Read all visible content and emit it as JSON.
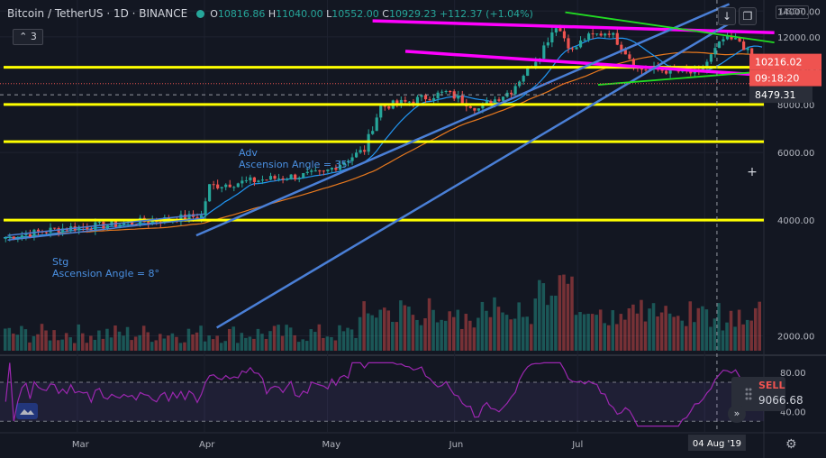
{
  "header": {
    "symbol": "Bitcoin / TetherUS · 1D · BINANCE",
    "open_key": "O",
    "open": "10816.86",
    "high_key": "H",
    "high": "11040.00",
    "low_key": "L",
    "low": "10552.00",
    "close_key": "C",
    "close": "10929.23",
    "change": "+112.37 (+1.04%)",
    "indicator_count": "3",
    "currency": "USDT"
  },
  "colors": {
    "bg": "#131722",
    "up": "#26a69a",
    "down": "#ef5350",
    "yellow": "#ffff00",
    "magenta": "#ff00ff",
    "blue": "#4a7fd6",
    "green": "#22dd22",
    "orange": "#e8791e",
    "ma_blue": "#2196f3",
    "rsi": "#9c27b0"
  },
  "icons": {
    "down_arrow": "arrow-down-icon",
    "fullscreen": "fullscreen-icon",
    "plus": "plus-icon",
    "camera": "camera-icon",
    "settings": "gear-icon",
    "more": "chevrons-right-icon"
  },
  "badges": {
    "price": "10216.02",
    "countdown": "09:18:20",
    "crosshair_price": "8479.31",
    "sell_label": "SELL",
    "sell_value": "9066.68",
    "date": "04 Aug '19"
  },
  "annotations": [
    {
      "text": "Adv",
      "line2": "Ascension Angle = 35°"
    },
    {
      "text": "Stg",
      "line2": "Ascension Angle = 8°"
    }
  ],
  "chart_data": {
    "type": "candlestick",
    "symbol": "BTCUSDT",
    "interval": "1D",
    "x_axis": {
      "ticks": [
        "Mar",
        "Apr",
        "May",
        "Jun",
        "Jul",
        "Aug"
      ],
      "tick_labels": [
        "Mar",
        "Apr",
        "May",
        "Jun",
        "Jul",
        ""
      ],
      "start": "2019-02-11",
      "end": "2019-08-15",
      "crosshair_label": "04 Aug '19"
    },
    "y_axis": {
      "scale": "log",
      "ticks": [
        2000,
        4000,
        6000,
        8000,
        10000,
        12000,
        14000
      ],
      "tick_labels": [
        "2000.00",
        "4000.00",
        "6000.00",
        "8000.00",
        "10000.00",
        "12000.00",
        "14000.00"
      ],
      "range": [
        1800,
        14800
      ]
    },
    "price_path": [
      [
        "2019-02-11",
        3600
      ],
      [
        "2019-02-24",
        3800
      ],
      [
        "2019-03-10",
        3900
      ],
      [
        "2019-03-31",
        4100
      ],
      [
        "2019-04-02",
        4900
      ],
      [
        "2019-04-15",
        5100
      ],
      [
        "2019-04-30",
        5300
      ],
      [
        "2019-05-10",
        6100
      ],
      [
        "2019-05-14",
        7900
      ],
      [
        "2019-05-20",
        8100
      ],
      [
        "2019-05-30",
        8600
      ],
      [
        "2019-06-07",
        7800
      ],
      [
        "2019-06-15",
        8700
      ],
      [
        "2019-06-22",
        10800
      ],
      [
        "2019-06-26",
        12900
      ],
      [
        "2019-06-30",
        11000
      ],
      [
        "2019-07-03",
        11900
      ],
      [
        "2019-07-09",
        12400
      ],
      [
        "2019-07-16",
        9900
      ],
      [
        "2019-07-24",
        9800
      ],
      [
        "2019-07-31",
        9600
      ],
      [
        "2019-08-06",
        11800
      ],
      [
        "2019-08-10",
        11700
      ],
      [
        "2019-08-14",
        10200
      ]
    ],
    "horizontal_levels": [
      10000,
      8000,
      6400,
      4000
    ],
    "trend_lines": [
      {
        "color": "magenta",
        "from": [
          "2019-05-12",
          13200
        ],
        "to": [
          "2019-08-18",
          12300
        ]
      },
      {
        "color": "magenta",
        "from": [
          "2019-05-20",
          11000
        ],
        "to": [
          "2019-08-18",
          9500
        ]
      },
      {
        "color": "blue",
        "from": [
          "2019-03-30",
          3650
        ],
        "to": [
          "2019-08-07",
          14600
        ]
      },
      {
        "color": "blue",
        "from": [
          "2019-04-04",
          2100
        ],
        "to": [
          "2019-08-07",
          13000
        ]
      },
      {
        "color": "green",
        "from": [
          "2019-06-28",
          13900
        ],
        "to": [
          "2019-08-18",
          11600
        ]
      },
      {
        "color": "green",
        "from": [
          "2019-07-06",
          9000
        ],
        "to": [
          "2019-08-18",
          9800
        ]
      }
    ],
    "rsi": {
      "ticks": [
        40,
        60,
        80
      ],
      "tick_labels": [
        "40.00",
        "",
        "80.00"
      ]
    },
    "last_price": 10216.02
  }
}
